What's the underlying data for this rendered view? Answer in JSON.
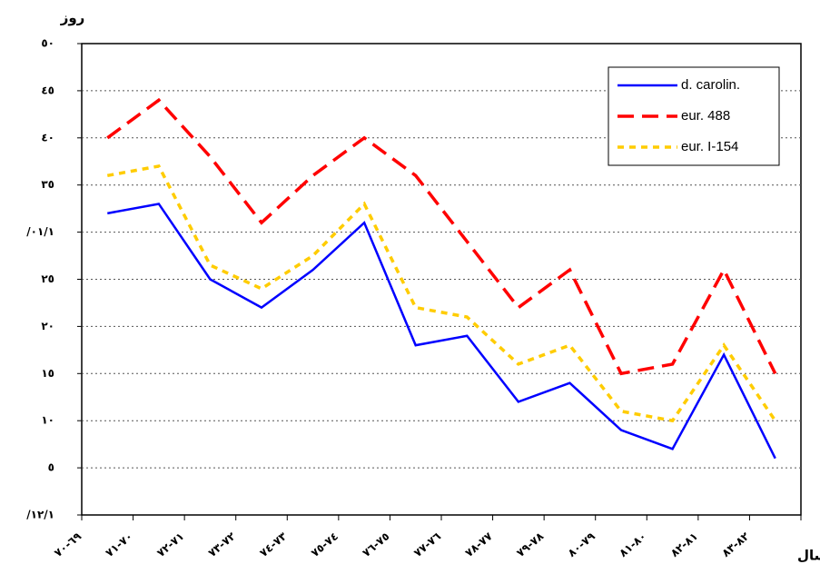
{
  "chart_data": {
    "type": "line",
    "y_label": "روز",
    "x_label": "سال",
    "categories": [
      "٦٩-٧٠",
      "٧٠-٧١",
      "٧١-٧٢",
      "٧٢-٧٣",
      "٧٣-٧٤",
      "٧٤-٧٥",
      "٧٥-٧٦",
      "٧٦-٧٧",
      "٧٧-٧٨",
      "٧٨-٧٩",
      "٧٩-٨٠",
      "٨٠-٨١",
      "٨١-٨٢",
      "٨٢-٨٣"
    ],
    "series": [
      {
        "name": "d. carolin.",
        "color": "#0000ff",
        "line_style": "solid",
        "values": [
          32,
          33,
          25,
          22,
          26,
          31,
          18,
          19,
          12,
          14,
          9,
          7,
          17,
          6
        ]
      },
      {
        "name": "eur. 488",
        "color": "#ff0000",
        "line_style": "dash",
        "values": [
          40,
          44,
          38,
          31,
          36,
          40,
          36,
          29,
          22,
          26,
          15,
          16,
          26,
          15
        ]
      },
      {
        "name": "eur. I-154",
        "color": "#ffcc00",
        "line_style": "dot",
        "values": [
          36,
          37,
          26.5,
          24,
          27.5,
          33,
          22,
          21,
          16,
          18,
          11,
          10,
          18,
          10
        ]
      }
    ],
    "ylim": [
      0,
      50
    ],
    "yticks": [
      {
        "value": 0,
        "label": "/١٢/١"
      },
      {
        "value": 5,
        "label": "٥"
      },
      {
        "value": 10,
        "label": "١٠"
      },
      {
        "value": 15,
        "label": "١٥"
      },
      {
        "value": 20,
        "label": "٢٠"
      },
      {
        "value": 25,
        "label": "٢٥"
      },
      {
        "value": 30,
        "label": "/٠١/١"
      },
      {
        "value": 35,
        "label": "٣٥"
      },
      {
        "value": 40,
        "label": "٤٠"
      },
      {
        "value": 45,
        "label": "٤٥"
      },
      {
        "value": 50,
        "label": "٥٠"
      }
    ],
    "grid": true,
    "legend": "upper right"
  }
}
